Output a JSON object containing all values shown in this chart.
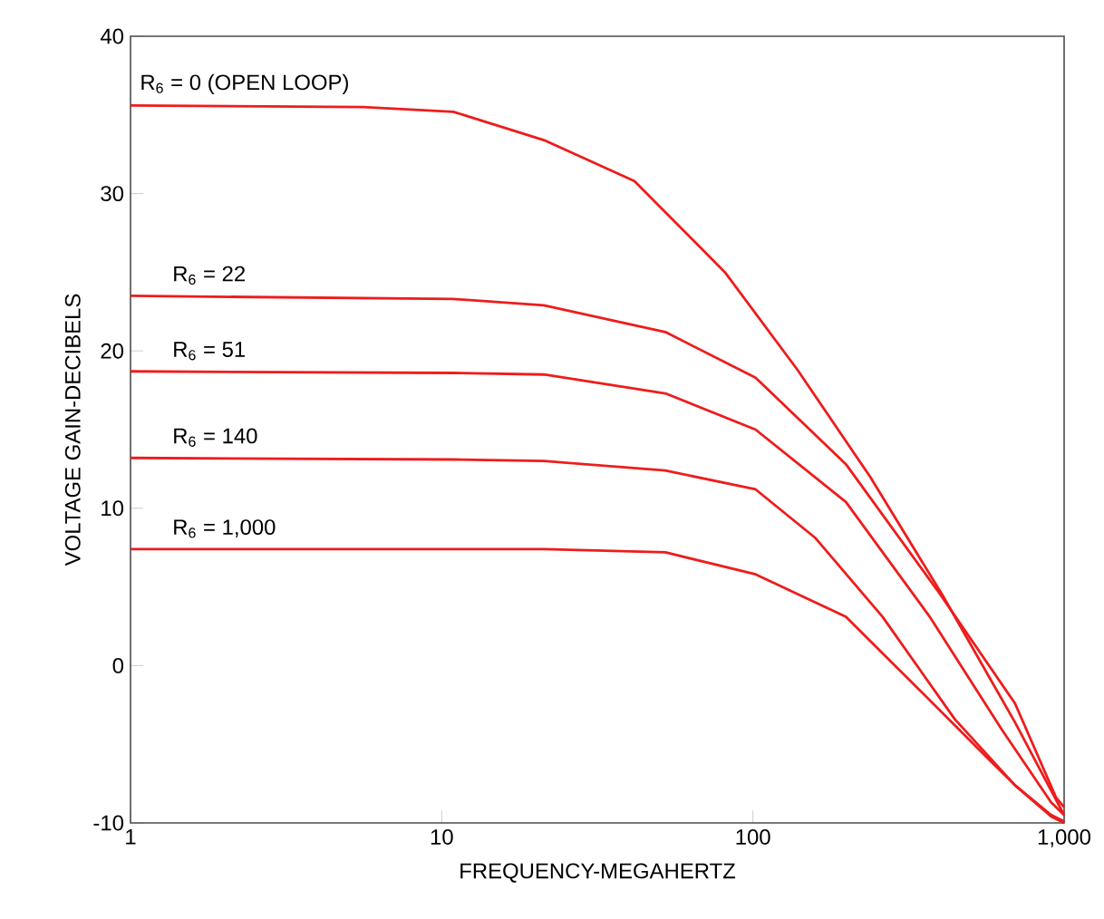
{
  "chart_data": {
    "type": "line",
    "xlabel": "FREQUENCY-MEGAHERTZ",
    "ylabel": "VOLTAGE GAIN-DECIBELS",
    "log": "x",
    "grid": false,
    "legend": false,
    "marker": "none",
    "line_style": "solid",
    "xlim": [
      1,
      1000
    ],
    "ylim": [
      -10,
      40
    ],
    "xticks": [
      1,
      10,
      100,
      {
        "value": 1000,
        "label": "1,000"
      }
    ],
    "yticks": [
      -10,
      0,
      10,
      20,
      30,
      40
    ],
    "series": [
      {
        "name": "R$_{6}$ = 0 (OPEN LOOP)",
        "color": "#ee1c1c",
        "x": [
          1,
          5.6,
          10.9,
          21.3,
          41.6,
          81.3,
          139,
          238,
          406,
          695,
          1000
        ],
        "values": [
          35.6,
          35.5,
          35.2,
          33.4,
          30.8,
          25.0,
          18.8,
          12.0,
          4.5,
          -3.6,
          -9.5
        ]
      },
      {
        "name": "R$_{6}$ = 22",
        "color": "#ee1c1c",
        "x": [
          1,
          10.9,
          21.3,
          52.3,
          102,
          199,
          391,
          695,
          943,
          1000
        ],
        "values": [
          23.5,
          23.3,
          22.9,
          21.2,
          18.3,
          12.8,
          4.8,
          -2.4,
          -8.4,
          -9
        ]
      },
      {
        "name": "R$_{6}$ = 51",
        "color": "#ee1c1c",
        "x": [
          1,
          10.9,
          21.3,
          52.3,
          102,
          199,
          370,
          632,
          909,
          1000
        ],
        "values": [
          18.7,
          18.6,
          18.5,
          17.3,
          15.0,
          10.4,
          3.1,
          -4.1,
          -8.7,
          -9.5
        ]
      },
      {
        "name": "R$_{6}$ = 140",
        "color": "#ee1c1c",
        "x": [
          1,
          10.9,
          21.3,
          52.3,
          102,
          159,
          261,
          445,
          695,
          909,
          1000
        ],
        "values": [
          13.2,
          13.1,
          13.0,
          12.4,
          11.2,
          8.1,
          3.1,
          -3.4,
          -7.6,
          -9.6,
          -10
        ]
      },
      {
        "name": "R$_{6}$ = 1,000",
        "color": "#ee1c1c",
        "x": [
          1,
          10.9,
          21.3,
          52.3,
          102,
          199,
          341,
          582,
          695,
          909,
          1000
        ],
        "values": [
          7.4,
          7.4,
          7.4,
          7.2,
          5.8,
          3.1,
          -1.5,
          -6.1,
          -7.6,
          -9.5,
          -9.9
        ]
      }
    ]
  }
}
